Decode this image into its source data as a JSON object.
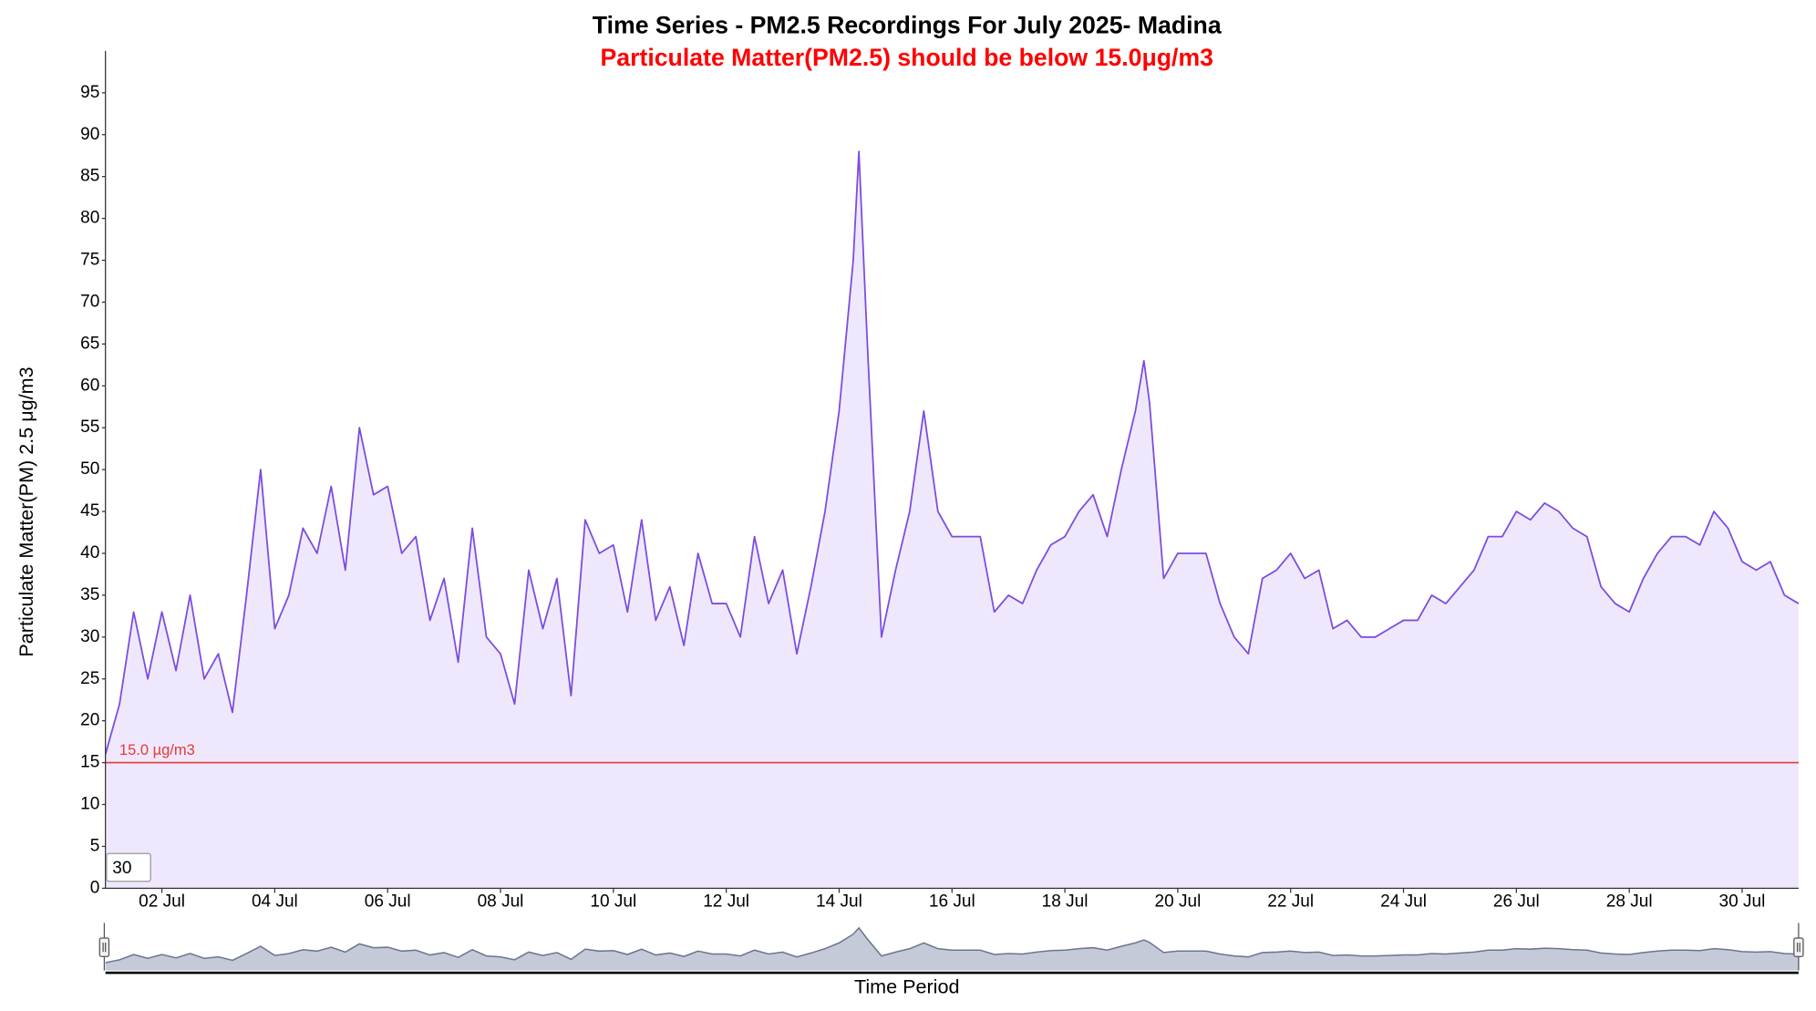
{
  "chart_data": {
    "type": "area",
    "title": "Time Series - PM2.5 Recordings For July 2025- Madina",
    "subtitle": "Particulate Matter(PM2.5) should be below 15.0μg/m3",
    "y_label": "Particulate Matter(PM) 2.5 μg/m3",
    "x_label": "Time Period",
    "window_input": 30,
    "color": "#7b4ce0",
    "fill_color": "#efe8fc",
    "threshold": {
      "value": 15,
      "label": "15.0 µg/m3",
      "color": "#e53935"
    },
    "x": [
      1,
      1.25,
      1.5,
      1.75,
      2,
      2.25,
      2.5,
      2.75,
      3,
      3.25,
      3.5,
      3.75,
      4,
      4.25,
      4.5,
      4.75,
      5,
      5.25,
      5.5,
      5.75,
      6,
      6.25,
      6.5,
      6.75,
      7,
      7.25,
      7.5,
      7.75,
      8,
      8.25,
      8.5,
      8.75,
      9,
      9.25,
      9.5,
      9.75,
      10,
      10.25,
      10.5,
      10.75,
      11,
      11.25,
      11.5,
      11.75,
      12,
      12.25,
      12.5,
      12.75,
      13,
      13.25,
      13.5,
      13.75,
      14,
      14.25,
      14.35,
      14.5,
      14.75,
      15,
      15.25,
      15.5,
      15.75,
      16,
      16.25,
      16.5,
      16.75,
      17,
      17.25,
      17.5,
      17.75,
      18,
      18.25,
      18.5,
      18.75,
      19,
      19.25,
      19.4,
      19.5,
      19.75,
      20,
      20.25,
      20.5,
      20.75,
      21,
      21.25,
      21.5,
      21.75,
      22,
      22.25,
      22.5,
      22.75,
      23,
      23.25,
      23.5,
      23.75,
      24,
      24.25,
      24.5,
      24.75,
      25,
      25.25,
      25.5,
      25.75,
      26,
      26.25,
      26.5,
      26.75,
      27,
      27.25,
      27.5,
      27.75,
      28,
      28.25,
      28.5,
      28.75,
      29,
      29.25,
      29.5,
      29.75,
      30,
      30.25,
      30.5,
      30.75,
      31
    ],
    "values": [
      16,
      22,
      33,
      25,
      33,
      26,
      35,
      25,
      28,
      21,
      35,
      50,
      31,
      35,
      43,
      40,
      48,
      38,
      55,
      47,
      48,
      40,
      42,
      32,
      37,
      27,
      43,
      30,
      28,
      22,
      38,
      31,
      37,
      23,
      44,
      40,
      41,
      33,
      44,
      32,
      36,
      29,
      40,
      34,
      34,
      30,
      42,
      34,
      38,
      28,
      36,
      45,
      57,
      75,
      88,
      65,
      30,
      38,
      45,
      57,
      45,
      42,
      42,
      42,
      33,
      35,
      34,
      38,
      41,
      42,
      45,
      47,
      42,
      50,
      57,
      63,
      58,
      37,
      40,
      40,
      40,
      34,
      30,
      28,
      37,
      38,
      40,
      37,
      38,
      31,
      32,
      30,
      30,
      31,
      32,
      32,
      35,
      34,
      36,
      38,
      42,
      42,
      45,
      44,
      46,
      45,
      43,
      42,
      36,
      34,
      33,
      37,
      40,
      42,
      42,
      41,
      45,
      43,
      39,
      38,
      39,
      35,
      34
    ],
    "xlim": [
      1,
      31
    ],
    "xticks": [
      {
        "value": 2,
        "label": "02 Jul"
      },
      {
        "value": 4,
        "label": "04 Jul"
      },
      {
        "value": 6,
        "label": "06 Jul"
      },
      {
        "value": 8,
        "label": "08 Jul"
      },
      {
        "value": 10,
        "label": "10 Jul"
      },
      {
        "value": 12,
        "label": "12 Jul"
      },
      {
        "value": 14,
        "label": "14 Jul"
      },
      {
        "value": 16,
        "label": "16 Jul"
      },
      {
        "value": 18,
        "label": "18 Jul"
      },
      {
        "value": 20,
        "label": "20 Jul"
      },
      {
        "value": 22,
        "label": "22 Jul"
      },
      {
        "value": 24,
        "label": "24 Jul"
      },
      {
        "value": 26,
        "label": "26 Jul"
      },
      {
        "value": 28,
        "label": "28 Jul"
      },
      {
        "value": 30,
        "label": "30 Jul"
      }
    ],
    "ylim": [
      0,
      100
    ],
    "yticks": [
      0,
      5,
      10,
      15,
      20,
      25,
      30,
      35,
      40,
      45,
      50,
      55,
      60,
      65,
      70,
      75,
      80,
      85,
      90,
      95
    ],
    "grid": false
  }
}
